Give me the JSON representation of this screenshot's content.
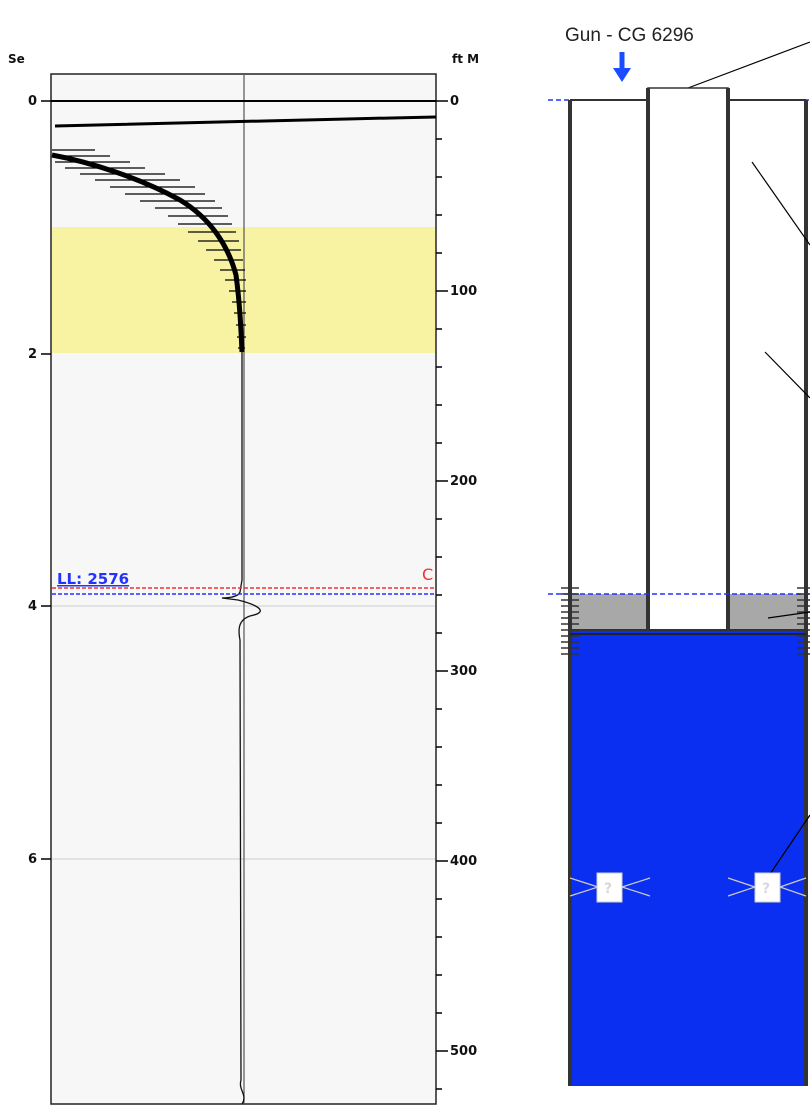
{
  "log": {
    "left_axis_label": "Se",
    "right_axis_label": "ft M",
    "left_ticks": [
      "0",
      "2",
      "4",
      "6"
    ],
    "right_ticks": [
      "0",
      "100",
      "200",
      "300",
      "400",
      "500"
    ],
    "ll_label": "LL: 2576",
    "marker_label": "C"
  },
  "well": {
    "gun_label": "Gun - CG 6296",
    "probe_labels": [
      "?",
      "?"
    ]
  },
  "colors": {
    "panel_bg": "#f7f7f7",
    "highlight_band": "#f7f3a3",
    "fluid_blue": "#0b2ff0",
    "gray_band": "#a8a8a8",
    "dashed_blue": "#2233ff",
    "dashed_red": "#ee3333",
    "arrow_blue": "#1a4dff"
  }
}
